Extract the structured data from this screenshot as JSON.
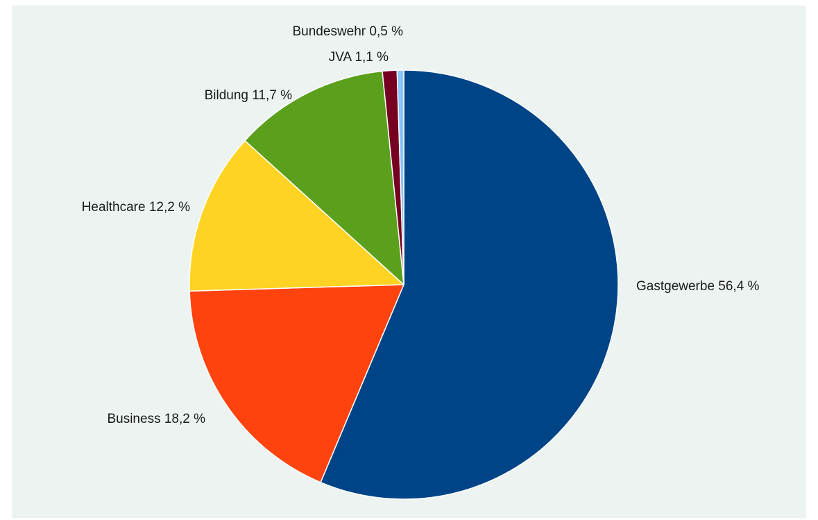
{
  "chart_data": {
    "type": "pie",
    "title": "",
    "start_angle_deg": 0,
    "direction": "clockwise",
    "legend": "none",
    "slices": [
      {
        "name": "Gastgewerbe",
        "value": 56.4,
        "label": "Gastgewerbe 56,4 %",
        "color": "#004488"
      },
      {
        "name": "Business",
        "value": 18.2,
        "label": "Business 18,2 %",
        "color": "#ff430f"
      },
      {
        "name": "Healthcare",
        "value": 12.2,
        "label": "Healthcare 12,2 %",
        "color": "#fed323"
      },
      {
        "name": "Bildung",
        "value": 11.7,
        "label": "Bildung 11,7 %",
        "color": "#5aa01d"
      },
      {
        "name": "JVA",
        "value": 1.1,
        "label": "JVA 1,1 %",
        "color": "#760021"
      },
      {
        "name": "Bundeswehr",
        "value": 0.5,
        "label": "Bundeswehr 0,5 %",
        "color": "#8bc4f6"
      }
    ]
  }
}
